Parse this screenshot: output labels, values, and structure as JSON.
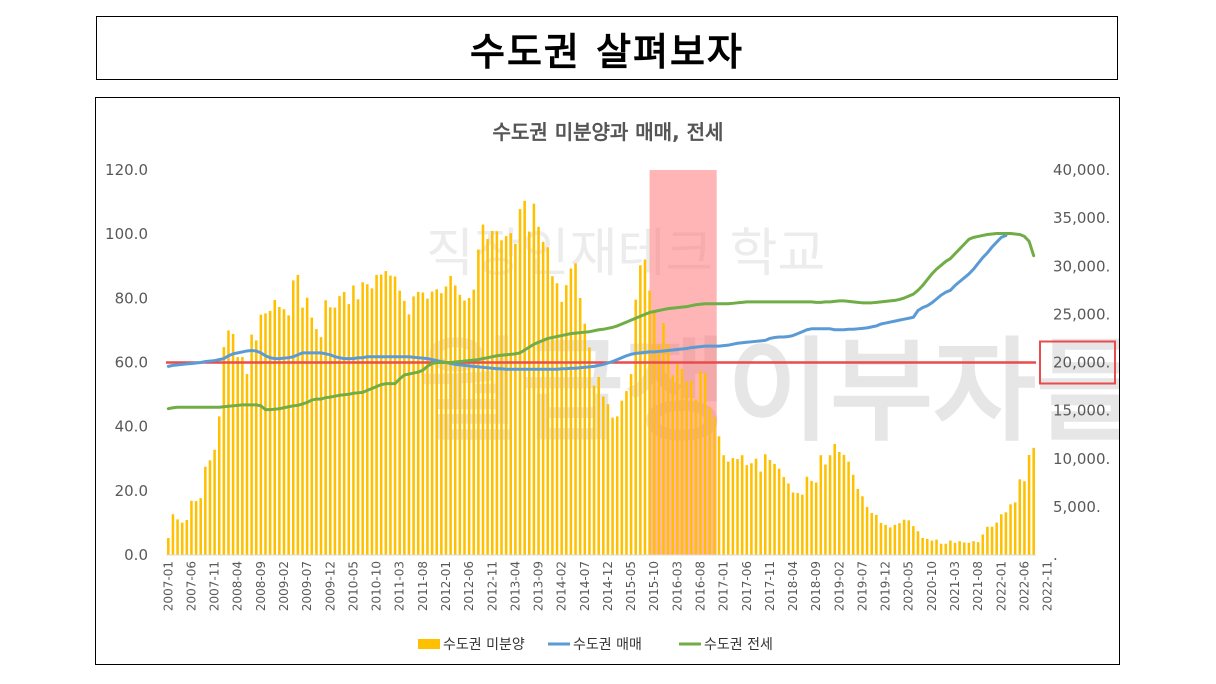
{
  "page_title": "수도권 살펴보자",
  "watermark": {
    "line1": "직장인재테크 학교",
    "line2": "월급쟁이부자들"
  },
  "chart_data": {
    "type": "bar+line",
    "title": "수도권 미분양과 매매, 전세",
    "left_axis": {
      "ylim": [
        0,
        120
      ],
      "ticks": [
        "0.0",
        "20.0",
        "40.0",
        "60.0",
        "80.0",
        "100.0",
        "120.0"
      ]
    },
    "right_axis": {
      "ylim": [
        0,
        40000
      ],
      "ticks": [
        ".",
        "5,000.",
        "10,000.",
        "15,000.",
        "20,000.",
        "25,000.",
        "30,000.",
        "35,000.",
        "40,000."
      ]
    },
    "x_tick_labels": [
      "2007-01",
      "2007-06",
      "2007-11",
      "2008-04",
      "2008-09",
      "2009-02",
      "2009-07",
      "2009-12",
      "2010-05",
      "2010-10",
      "2011-03",
      "2011-08",
      "2012-01",
      "2012-06",
      "2012-11",
      "2013-04",
      "2013-09",
      "2014-02",
      "2014-07",
      "2014-12",
      "2015-05",
      "2015-10",
      "2016-03",
      "2016-08",
      "2017-01",
      "2017-06",
      "2017-11",
      "2018-04",
      "2018-09",
      "2019-02",
      "2019-07",
      "2019-12",
      "2020-05",
      "2020-10",
      "2021-03",
      "2021-08",
      "2022-01",
      "2022-06",
      "2022-11"
    ],
    "series": [
      {
        "name": "수도권 미분양",
        "type": "bar",
        "axis": "left",
        "color": "#FFC000",
        "values": [
          5.3,
          12.7,
          11.1,
          10.1,
          10.9,
          16.9,
          16.8,
          17.7,
          27.5,
          29.5,
          32.8,
          43.2,
          64.8,
          70.0,
          68.9,
          61.7,
          61.7,
          56.4,
          68.7,
          66.9,
          74.9,
          75.3,
          76.1,
          79.5,
          77.3,
          76.6,
          74.7,
          85.6,
          87.3,
          77.1,
          80.2,
          74.0,
          70.4,
          67.9,
          79.4,
          77.2,
          77.1,
          80.7,
          82.0,
          78.2,
          84.0,
          79.7,
          85.0,
          84.4,
          83.1,
          87.3,
          87.4,
          88.5,
          87.1,
          86.8,
          82.4,
          79.2,
          75.0,
          80.6,
          82.0,
          81.8,
          79.9,
          82.1,
          82.8,
          81.6,
          83.7,
          87.0,
          84.0,
          81.1,
          79.3,
          80.1,
          82.7,
          95.2,
          103.0,
          98.5,
          101.0,
          100.9,
          98.1,
          99.4,
          100.3,
          97.0,
          107.8,
          110.4,
          100.8,
          109.5,
          102.3,
          97.6,
          95.9,
          86.9,
          84.7,
          78.9,
          84.1,
          89.3,
          90.9,
          80.1,
          72.1,
          64.7,
          52.8,
          55.5,
          49.4,
          47.0,
          42.8,
          43.2,
          48.1,
          51.1,
          56.4,
          79.6,
          90.3,
          92.1,
          82.4,
          75.6,
          65.5,
          72.3,
          65.7,
          56.0,
          59.5,
          58.0,
          54.1,
          54.3,
          48.5,
          57.4,
          56.6,
          46.0,
          43.0,
          37.0,
          31.1,
          29.1,
          30.2,
          29.9,
          31.1,
          28.0,
          28.6,
          30.0,
          26.0,
          31.4,
          29.6,
          28.4,
          26.9,
          24.3,
          22.3,
          19.5,
          19.3,
          18.8,
          24.4,
          23.1,
          22.6,
          31.1,
          28.2,
          31.1,
          34.6,
          32.1,
          31.2,
          29.1,
          25.0,
          20.6,
          18.3,
          15.0,
          13.1,
          12.5,
          10.0,
          9.4,
          8.6,
          9.4,
          9.9,
          11.0,
          10.8,
          9.0,
          7.4,
          5.3,
          5.0,
          4.5,
          4.8,
          3.5,
          3.5,
          4.5,
          3.8,
          4.3,
          3.9,
          3.8,
          4.3,
          4.0,
          6.4,
          8.8,
          8.8,
          10.1,
          12.7,
          13.3,
          15.8,
          16.4,
          23.6,
          23.0,
          31.2,
          33.4
        ]
      },
      {
        "name": "수도권 매매",
        "type": "line",
        "axis": "right",
        "color": "#5B9BD5",
        "values": [
          19600,
          19700,
          19750,
          19800,
          19850,
          19900,
          19950,
          20000,
          20100,
          20150,
          20200,
          20300,
          20400,
          20700,
          20900,
          21000,
          21100,
          21200,
          21250,
          21200,
          21000,
          20700,
          20500,
          20400,
          20400,
          20450,
          20500,
          20600,
          20800,
          21000,
          21000,
          21000,
          21000,
          21000,
          20900,
          20800,
          20600,
          20500,
          20400,
          20400,
          20400,
          20500,
          20500,
          20600,
          20600,
          20600,
          20600,
          20600,
          20600,
          20600,
          20600,
          20600,
          20600,
          20550,
          20500,
          20450,
          20400,
          20300,
          20200,
          20100,
          20000,
          19900,
          19800,
          19750,
          19700,
          19650,
          19600,
          19550,
          19500,
          19450,
          19400,
          19350,
          19350,
          19300,
          19300,
          19300,
          19300,
          19300,
          19300,
          19300,
          19300,
          19300,
          19300,
          19300,
          19300,
          19350,
          19350,
          19400,
          19400,
          19450,
          19500,
          19550,
          19600,
          19700,
          19800,
          19950,
          20100,
          20300,
          20500,
          20700,
          20850,
          20950,
          21000,
          21050,
          21100,
          21100,
          21150,
          21200,
          21250,
          21300,
          21350,
          21400,
          21450,
          21550,
          21600,
          21650,
          21700,
          21700,
          21700,
          21700,
          21750,
          21800,
          21900,
          22000,
          22050,
          22100,
          22150,
          22200,
          22250,
          22300,
          22500,
          22600,
          22650,
          22650,
          22700,
          22800,
          23000,
          23200,
          23400,
          23500,
          23500,
          23500,
          23500,
          23500,
          23400,
          23400,
          23400,
          23450,
          23450,
          23500,
          23550,
          23600,
          23700,
          23800,
          24000,
          24100,
          24200,
          24300,
          24400,
          24500,
          24600,
          24700,
          25400,
          25700,
          25900,
          26200,
          26600,
          27000,
          27300,
          27500,
          28000,
          28400,
          28800,
          29200,
          29700,
          30300,
          30900,
          31400,
          32000,
          32500,
          33000,
          33200
        ]
      },
      {
        "name": "수도권 전세",
        "type": "line",
        "axis": "right",
        "color": "#70AD47",
        "values": [
          15200,
          15300,
          15350,
          15350,
          15350,
          15350,
          15350,
          15350,
          15350,
          15350,
          15350,
          15350,
          15400,
          15450,
          15500,
          15550,
          15600,
          15600,
          15600,
          15600,
          15500,
          15100,
          15100,
          15150,
          15200,
          15300,
          15400,
          15500,
          15550,
          15700,
          15850,
          16100,
          16200,
          16200,
          16350,
          16400,
          16500,
          16600,
          16650,
          16700,
          16800,
          16850,
          16900,
          17100,
          17300,
          17500,
          17700,
          17800,
          17800,
          17800,
          18300,
          18700,
          18800,
          18900,
          19000,
          19200,
          19600,
          19900,
          20000,
          20000,
          20000,
          20000,
          20050,
          20100,
          20150,
          20200,
          20250,
          20300,
          20400,
          20500,
          20600,
          20700,
          20750,
          20800,
          20850,
          20900,
          21000,
          21300,
          21600,
          21900,
          22100,
          22300,
          22500,
          22600,
          22700,
          22800,
          22900,
          23000,
          23050,
          23100,
          23150,
          23200,
          23300,
          23400,
          23450,
          23550,
          23650,
          23800,
          24000,
          24200,
          24400,
          24600,
          24800,
          25000,
          25200,
          25300,
          25400,
          25500,
          25600,
          25650,
          25700,
          25750,
          25800,
          25900,
          26000,
          26050,
          26100,
          26100,
          26100,
          26100,
          26100,
          26100,
          26150,
          26200,
          26250,
          26300,
          26300,
          26300,
          26300,
          26300,
          26300,
          26300,
          26300,
          26300,
          26300,
          26300,
          26300,
          26300,
          26300,
          26300,
          26250,
          26250,
          26300,
          26300,
          26350,
          26400,
          26400,
          26350,
          26300,
          26250,
          26200,
          26200,
          26200,
          26250,
          26300,
          26350,
          26400,
          26450,
          26550,
          26700,
          26900,
          27100,
          27500,
          28000,
          28600,
          29200,
          29700,
          30100,
          30500,
          30800,
          31300,
          31800,
          32300,
          32800,
          33000,
          33100,
          33200,
          33300,
          33350,
          33400,
          33400,
          33400,
          33400,
          33350,
          33300,
          33100,
          32600,
          31100
        ]
      }
    ],
    "highlight_range": [
      "2015-10",
      "2016-11"
    ],
    "reference_line": {
      "axis": "right",
      "value": 20000,
      "color": "#E84C4C",
      "label": "20,000."
    },
    "legend": [
      "수도권 미분양",
      "수도권 매매",
      "수도권 전세"
    ],
    "legend_position": "bottom"
  }
}
